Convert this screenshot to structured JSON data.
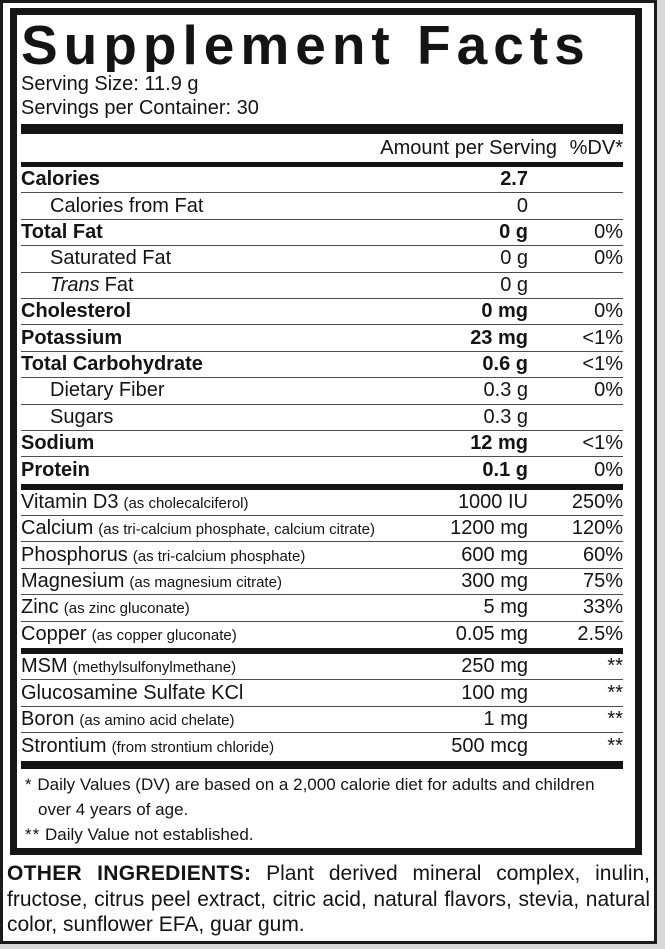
{
  "label": {
    "title": "Supplement Facts",
    "serving_size": "Serving Size: 11.9 g",
    "servings_per_container": "Servings per Container: 30",
    "header": {
      "amount": "Amount per Serving",
      "dv": "%DV*"
    },
    "sections": [
      {
        "name": "macronutrients",
        "rows": [
          {
            "name": "Calories",
            "amount": "2.7",
            "dv": "",
            "bold": true
          },
          {
            "name": "Calories from Fat",
            "amount": "0",
            "dv": "",
            "indent": true
          },
          {
            "name": "Total Fat",
            "amount": "0 g",
            "dv": "0%",
            "bold": true
          },
          {
            "name": "Saturated Fat",
            "amount": "0 g",
            "dv": "0%",
            "indent": true
          },
          {
            "name_italic": "Trans",
            "name": "Fat",
            "amount": "0 g",
            "dv": "",
            "indent": true
          },
          {
            "name": "Cholesterol",
            "amount": "0 mg",
            "dv": "0%",
            "bold": true
          },
          {
            "name": "Potassium",
            "amount": "23 mg",
            "dv": "<1%",
            "bold": true
          },
          {
            "name": "Total Carbohydrate",
            "amount": "0.6 g",
            "dv": "<1%",
            "bold": true
          },
          {
            "name": "Dietary Fiber",
            "amount": "0.3 g",
            "dv": "0%",
            "indent": true
          },
          {
            "name": "Sugars",
            "amount": "0.3 g",
            "dv": "",
            "indent": true
          },
          {
            "name": "Sodium",
            "amount": "12 mg",
            "dv": "<1%",
            "bold": true
          },
          {
            "name": "Protein",
            "amount": "0.1 g",
            "dv": "0%",
            "bold": true
          }
        ]
      },
      {
        "name": "vitamins-minerals",
        "rows": [
          {
            "name": "Vitamin D3",
            "detail": "(as cholecalciferol)",
            "amount": "1000 IU",
            "dv": "250%"
          },
          {
            "name": "Calcium",
            "detail": "(as tri-calcium phosphate, calcium citrate)",
            "amount": "1200 mg",
            "dv": "120%"
          },
          {
            "name": "Phosphorus",
            "detail": "(as tri-calcium phosphate)",
            "amount": "600 mg",
            "dv": "60%"
          },
          {
            "name": "Magnesium",
            "detail": "(as magnesium citrate)",
            "amount": "300 mg",
            "dv": "75%"
          },
          {
            "name": "Zinc",
            "detail": "(as zinc gluconate)",
            "amount": "5 mg",
            "dv": "33%"
          },
          {
            "name": "Copper",
            "detail": "(as copper gluconate)",
            "amount": "0.05 mg",
            "dv": "2.5%"
          }
        ]
      },
      {
        "name": "other-compounds",
        "rows": [
          {
            "name": "MSM",
            "detail": "(methylsulfonylmethane)",
            "amount": "250 mg",
            "dv": "**"
          },
          {
            "name": "Glucosamine Sulfate KCl",
            "amount": "100 mg",
            "dv": "**"
          },
          {
            "name": "Boron",
            "detail": "(as amino acid chelate)",
            "amount": "1 mg",
            "dv": "**"
          },
          {
            "name": "Strontium",
            "detail": "(from strontium chloride)",
            "amount": "500 mcg",
            "dv": "**"
          }
        ]
      }
    ],
    "footnotes": [
      {
        "marker": "*",
        "text": "Daily Values (DV) are based on a 2,000 calorie diet for adults and children over 4 years of age."
      },
      {
        "marker": "**",
        "text": "Daily Value not established."
      }
    ],
    "other_ingredients": {
      "lead": "OTHER INGREDIENTS:",
      "text": "Plant derived mineral complex, inulin, fructose, citrus peel extract, citric acid, natural flavors, stevia, natural color, sunflower EFA, guar gum."
    },
    "colors": {
      "text": "#141414",
      "border": "#161616",
      "hairline": "#4d4d4d",
      "background": "#ffffff",
      "page_edge": "#d7d7d7"
    }
  }
}
